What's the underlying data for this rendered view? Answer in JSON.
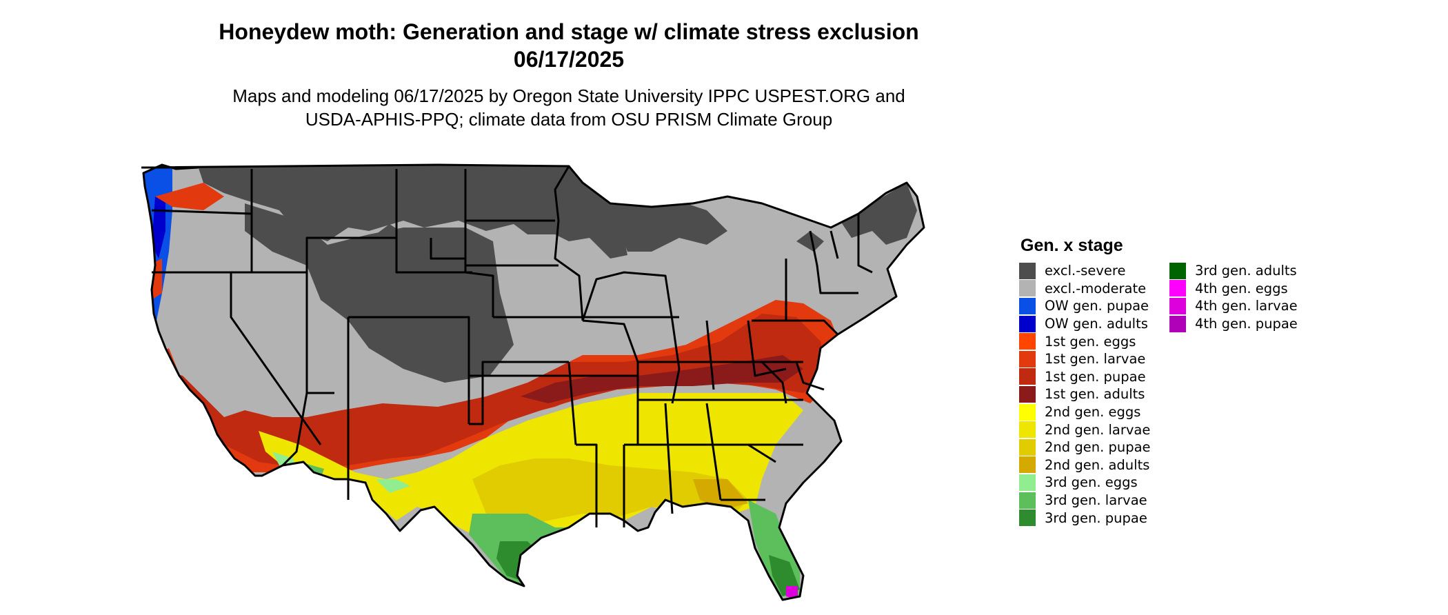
{
  "title": {
    "line1": "Honeydew moth: Generation and stage w/ climate stress exclusion",
    "line2": "06/17/2025"
  },
  "subtitle": {
    "line1": "Maps and modeling 06/17/2025 by Oregon State University IPPC USPEST.ORG and",
    "line2": "USDA-APHIS-PPQ; climate data from OSU PRISM Climate Group"
  },
  "legend": {
    "title": "Gen. x stage",
    "col1": [
      {
        "label": "excl.-severe",
        "color": "#4d4d4d"
      },
      {
        "label": "excl.-moderate",
        "color": "#b3b3b3"
      },
      {
        "label": "OW gen. pupae",
        "color": "#0a50e6"
      },
      {
        "label": "OW gen. adults",
        "color": "#0000cd"
      },
      {
        "label": "1st gen. eggs",
        "color": "#ff4500"
      },
      {
        "label": "1st gen. larvae",
        "color": "#e2390e"
      },
      {
        "label": "1st gen. pupae",
        "color": "#c02a10"
      },
      {
        "label": "1st gen. adults",
        "color": "#8b1a1a"
      },
      {
        "label": "2nd gen. eggs",
        "color": "#ffff00"
      },
      {
        "label": "2nd gen. larvae",
        "color": "#eee600"
      },
      {
        "label": "2nd gen. pupae",
        "color": "#e0cc00"
      },
      {
        "label": "2nd gen. adults",
        "color": "#d4aa00"
      },
      {
        "label": "3rd gen. eggs",
        "color": "#90ee90"
      },
      {
        "label": "3rd gen. larvae",
        "color": "#5cbf5c"
      },
      {
        "label": "3rd gen. pupae",
        "color": "#2e8b2e"
      }
    ],
    "col2": [
      {
        "label": "3rd gen. adults",
        "color": "#006400"
      },
      {
        "label": "4th gen. eggs",
        "color": "#ff00ff"
      },
      {
        "label": "4th gen. larvae",
        "color": "#dd00dd"
      },
      {
        "label": "4th gen. pupae",
        "color": "#b000b8"
      }
    ]
  }
}
